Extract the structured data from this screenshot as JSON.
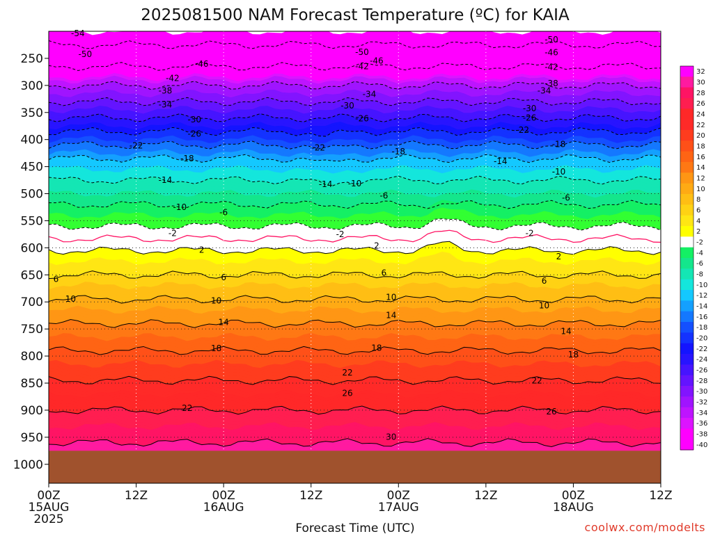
{
  "chart_data": {
    "type": "heatmap",
    "title": "2025081500 NAM Forecast Temperature (ºC) for KAIA",
    "xlabel": "Forecast Time (UTC)",
    "ylabel": "",
    "credit": "coolwx.com/modelts",
    "x_ticks": [
      {
        "hour": 0,
        "line1": "00Z",
        "line2": "15AUG",
        "line3": "2025"
      },
      {
        "hour": 12,
        "line1": "12Z",
        "line2": "",
        "line3": ""
      },
      {
        "hour": 24,
        "line1": "00Z",
        "line2": "16AUG",
        "line3": ""
      },
      {
        "hour": 36,
        "line1": "12Z",
        "line2": "",
        "line3": ""
      },
      {
        "hour": 48,
        "line1": "00Z",
        "line2": "17AUG",
        "line3": ""
      },
      {
        "hour": 60,
        "line1": "12Z",
        "line2": "",
        "line3": ""
      },
      {
        "hour": 72,
        "line1": "00Z",
        "line2": "18AUG",
        "line3": ""
      },
      {
        "hour": 84,
        "line1": "12Z",
        "line2": "",
        "line3": ""
      }
    ],
    "xlim": [
      0,
      84
    ],
    "y_ticks": [
      250,
      300,
      350,
      400,
      450,
      500,
      550,
      600,
      650,
      700,
      750,
      800,
      850,
      900,
      950,
      1000
    ],
    "ylim": [
      200,
      1035
    ],
    "ground_pressure_hPa": 975,
    "colorbar_levels": [
      32,
      30,
      28,
      26,
      24,
      22,
      20,
      18,
      16,
      14,
      12,
      10,
      8,
      6,
      4,
      2,
      -2,
      -4,
      -6,
      -8,
      -10,
      -12,
      -14,
      -16,
      -18,
      -20,
      -22,
      -24,
      -26,
      -28,
      -30,
      -32,
      -34,
      -36,
      -38,
      -40
    ],
    "colors": {
      "c32": "#ff00ff",
      "c30": "#ff1aa0",
      "c28": "#ff1464",
      "c26": "#ff1e50",
      "c24": "#ff2828",
      "c22": "#ff2a28",
      "c20": "#ff3c1e",
      "c18": "#ff5018",
      "c16": "#ff6414",
      "c14": "#ff7814",
      "c12": "#ff9614",
      "c10": "#ffaa14",
      "c8": "#ffbe14",
      "c6": "#ffd214",
      "c4": "#ffe614",
      "c2": "#ffff00",
      "c0": "#ffffff",
      "cm2": "#00ff00",
      "cm4": "#32ff32",
      "cm6": "#14f064",
      "cm8": "#14e68c",
      "cm10": "#14e6b4",
      "cm12": "#14e6dc",
      "cm14": "#14c8ff",
      "cm16": "#14a0ff",
      "cm18": "#1478ff",
      "cm20": "#1450ff",
      "cm22": "#1432ff",
      "cm24": "#1414ff",
      "cm26": "#2814ff",
      "cm28": "#4614ff",
      "cm30": "#6414ff",
      "cm32": "#8214ff",
      "cm34": "#a014ff",
      "cm36": "#be14ff",
      "cm38": "#dc14ff",
      "cm40": "#ff00ff",
      "ground": "#a0522d",
      "freezing_line": "#ff1464"
    },
    "isotherm_profile_t00": [
      {
        "p": 225,
        "t": -50
      },
      {
        "p": 265,
        "t": -42
      },
      {
        "p": 300,
        "t": -34
      },
      {
        "p": 330,
        "t": -30
      },
      {
        "p": 360,
        "t": -26
      },
      {
        "p": 385,
        "t": -22
      },
      {
        "p": 410,
        "t": -18
      },
      {
        "p": 435,
        "t": -14
      },
      {
        "p": 475,
        "t": -10
      },
      {
        "p": 520,
        "t": -6
      },
      {
        "p": 560,
        "t": -2
      },
      {
        "p": 605,
        "t": 2
      },
      {
        "p": 650,
        "t": 6
      },
      {
        "p": 695,
        "t": 10
      },
      {
        "p": 740,
        "t": 14
      },
      {
        "p": 790,
        "t": 18
      },
      {
        "p": 845,
        "t": 22
      },
      {
        "p": 900,
        "t": 26
      },
      {
        "p": 960,
        "t": 30
      }
    ],
    "contour_labels": [
      {
        "hour": 4,
        "p": 205,
        "text": "-54"
      },
      {
        "hour": 5,
        "p": 235,
        "text": "-50"
      },
      {
        "hour": 21,
        "p": 268,
        "text": "-46"
      },
      {
        "hour": 17,
        "p": 287,
        "text": "-42"
      },
      {
        "hour": 16,
        "p": 310,
        "text": "-38"
      },
      {
        "hour": 16,
        "p": 336,
        "text": "-34"
      },
      {
        "hour": 20,
        "p": 362,
        "text": "-30"
      },
      {
        "hour": 20,
        "p": 388,
        "text": "-26"
      },
      {
        "hour": 12,
        "p": 409,
        "text": "-22"
      },
      {
        "hour": 19,
        "p": 433,
        "text": "-18"
      },
      {
        "hour": 16,
        "p": 474,
        "text": "-14"
      },
      {
        "hour": 18,
        "p": 520,
        "text": "-10"
      },
      {
        "hour": 24,
        "p": 540,
        "text": "-6"
      },
      {
        "hour": 17,
        "p": 568,
        "text": "-2"
      },
      {
        "hour": 21,
        "p": 608,
        "text": "2"
      },
      {
        "hour": 24,
        "p": 652,
        "text": "6"
      },
      {
        "hour": 23,
        "p": 696,
        "text": "10"
      },
      {
        "hour": 24,
        "p": 738,
        "text": "14"
      },
      {
        "hour": 23,
        "p": 790,
        "text": "18"
      },
      {
        "hour": 19,
        "p": 898,
        "text": "22"
      },
      {
        "hour": 3,
        "p": 695,
        "text": "10"
      },
      {
        "hour": 1,
        "p": 652,
        "text": "6"
      },
      {
        "hour": 43,
        "p": 242,
        "text": "-50"
      },
      {
        "hour": 45,
        "p": 257,
        "text": "-46"
      },
      {
        "hour": 43,
        "p": 272,
        "text": "-42"
      },
      {
        "hour": 44,
        "p": 318,
        "text": "-34"
      },
      {
        "hour": 41,
        "p": 345,
        "text": "-30"
      },
      {
        "hour": 43,
        "p": 362,
        "text": "-26"
      },
      {
        "hour": 37,
        "p": 408,
        "text": "-22"
      },
      {
        "hour": 48,
        "p": 424,
        "text": "-18"
      },
      {
        "hour": 38,
        "p": 474,
        "text": "-14"
      },
      {
        "hour": 42,
        "p": 474,
        "text": "-10"
      },
      {
        "hour": 46,
        "p": 509,
        "text": "-6"
      },
      {
        "hour": 40,
        "p": 570,
        "text": "-2"
      },
      {
        "hour": 45,
        "p": 599,
        "text": "2"
      },
      {
        "hour": 46,
        "p": 643,
        "text": "6"
      },
      {
        "hour": 47,
        "p": 686,
        "text": "10"
      },
      {
        "hour": 47,
        "p": 726,
        "text": "14"
      },
      {
        "hour": 45,
        "p": 786,
        "text": "18"
      },
      {
        "hour": 41,
        "p": 829,
        "text": "22"
      },
      {
        "hour": 41,
        "p": 868,
        "text": "26"
      },
      {
        "hour": 47,
        "p": 942,
        "text": "30"
      },
      {
        "hour": 69,
        "p": 219,
        "text": "-50"
      },
      {
        "hour": 69,
        "p": 245,
        "text": "-46"
      },
      {
        "hour": 69,
        "p": 270,
        "text": "-42"
      },
      {
        "hour": 69,
        "p": 295,
        "text": "-38"
      },
      {
        "hour": 68,
        "p": 312,
        "text": "-34"
      },
      {
        "hour": 66,
        "p": 346,
        "text": "-30"
      },
      {
        "hour": 66,
        "p": 363,
        "text": "-26"
      },
      {
        "hour": 65,
        "p": 385,
        "text": "-22"
      },
      {
        "hour": 70,
        "p": 406,
        "text": "-18"
      },
      {
        "hour": 62,
        "p": 441,
        "text": "-14"
      },
      {
        "hour": 70,
        "p": 466,
        "text": "-10"
      },
      {
        "hour": 71,
        "p": 508,
        "text": "-6"
      },
      {
        "hour": 66,
        "p": 577,
        "text": "-2"
      },
      {
        "hour": 70,
        "p": 614,
        "text": "2"
      },
      {
        "hour": 68,
        "p": 659,
        "text": "6"
      },
      {
        "hour": 68,
        "p": 702,
        "text": "10"
      },
      {
        "hour": 71,
        "p": 757,
        "text": "14"
      },
      {
        "hour": 72,
        "p": 800,
        "text": "18"
      },
      {
        "hour": 67,
        "p": 852,
        "text": "22"
      },
      {
        "hour": 69,
        "p": 903,
        "text": "26"
      }
    ]
  }
}
